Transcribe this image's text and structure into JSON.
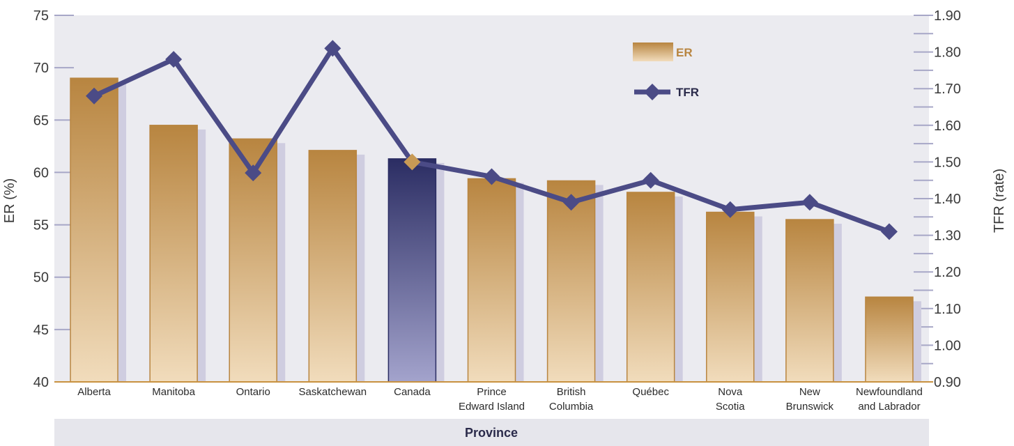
{
  "chart_data": {
    "type": "bar",
    "categories": [
      [
        "Alberta"
      ],
      [
        "Manitoba"
      ],
      [
        "Ontario"
      ],
      [
        "Saskatchewan"
      ],
      [
        "Canada"
      ],
      [
        "Prince",
        "Edward Island"
      ],
      [
        "British",
        "Columbia"
      ],
      [
        "Québec"
      ],
      [
        "Nova",
        "Scotia"
      ],
      [
        "New",
        "Brunswick"
      ],
      [
        "Newfoundland",
        "and Labrador"
      ]
    ],
    "series": [
      {
        "name": "ER",
        "type": "bar",
        "axis": "left",
        "values": [
          69.0,
          64.5,
          63.2,
          62.1,
          61.3,
          59.4,
          59.2,
          58.1,
          56.2,
          55.5,
          48.1
        ]
      },
      {
        "name": "TFR",
        "type": "line",
        "axis": "right",
        "values": [
          1.68,
          1.78,
          1.47,
          1.81,
          1.5,
          1.46,
          1.39,
          1.45,
          1.37,
          1.39,
          1.31
        ]
      }
    ],
    "highlight_category": "Canada",
    "xlabel": "Province",
    "ylabel": "ER (%)",
    "y2label": "TFR (rate)",
    "ylim": [
      40,
      75
    ],
    "yticks": [
      40,
      45,
      50,
      55,
      60,
      65,
      70,
      75
    ],
    "y2lim": [
      0.9,
      1.9
    ],
    "y2ticks": [
      "0.90",
      "1.00",
      "1.10",
      "1.20",
      "1.30",
      "1.40",
      "1.50",
      "1.60",
      "1.70",
      "1.80",
      "1.90"
    ],
    "legend_position": "top-right",
    "colors": {
      "bar_top": "#b88540",
      "bar_bottom": "#f1dcbc",
      "highlight_top": "#2b2d63",
      "highlight_bottom": "#a3a3cc",
      "bar_shadow": "#cfcde0",
      "line": "#4b4b86",
      "marker_highlight": "#c89a55",
      "plot_bg": "#ebebf0",
      "axis": "#c8913f",
      "tick": "#a7a7c7",
      "xlabel_bg": "#e6e6ec"
    }
  }
}
